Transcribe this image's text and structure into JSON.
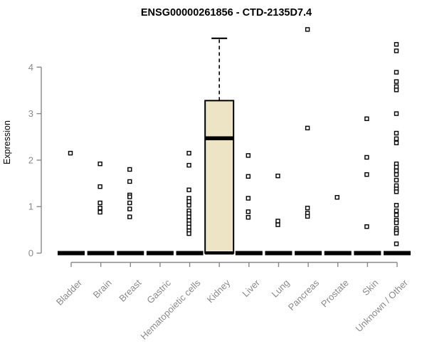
{
  "colors": {
    "axis": "#8A8A8A",
    "tick_text": "#8A8A8A",
    "title": "#000000",
    "box_fill": "#EDE4C5",
    "box_stroke": "#000000",
    "median": "#000000",
    "point_stroke": "#000000",
    "point_fill": "#FFFFFF",
    "background": "#FFFFFF"
  },
  "chart_data": {
    "type": "boxplot",
    "title": "ENSG00000261856 - CTD-2135D7.4",
    "xlabel": "",
    "ylabel": "Expression",
    "ylim": [
      0,
      4.85
    ],
    "yticks": [
      0,
      1,
      2,
      3,
      4
    ],
    "grid": false,
    "legend": "none",
    "categories": [
      "Bladder",
      "Brain",
      "Breast",
      "Gastric",
      "Hematopoietic cells",
      "Kidney",
      "Liver",
      "Lung",
      "Pancreas",
      "Prostate",
      "Skin",
      "Unknown / Other"
    ],
    "boxes": [
      {
        "category": "Bladder",
        "q1": 0,
        "median": 0,
        "q3": 0,
        "whisker_low": 0,
        "whisker_high": 0,
        "outliers": [
          2.15
        ]
      },
      {
        "category": "Brain",
        "q1": 0,
        "median": 0,
        "q3": 0,
        "whisker_low": 0,
        "whisker_high": 0,
        "outliers": [
          1.92,
          1.43,
          1.08,
          0.97,
          0.88
        ]
      },
      {
        "category": "Breast",
        "q1": 0,
        "median": 0,
        "q3": 0,
        "whisker_low": 0,
        "whisker_high": 0,
        "outliers": [
          1.8,
          1.54,
          1.25,
          1.21,
          1.08,
          0.95,
          0.78
        ]
      },
      {
        "category": "Gastric",
        "q1": 0,
        "median": 0,
        "q3": 0,
        "whisker_low": 0,
        "whisker_high": 0,
        "outliers": []
      },
      {
        "category": "Hematopoietic cells",
        "q1": 0,
        "median": 0,
        "q3": 0,
        "whisker_low": 0,
        "whisker_high": 0,
        "outliers": [
          2.15,
          1.89,
          1.36,
          1.18,
          1.11,
          1.03,
          0.91,
          0.85,
          0.78,
          0.7,
          0.63,
          0.56,
          0.48,
          0.42
        ]
      },
      {
        "category": "Kidney",
        "q1": 0,
        "median": 2.47,
        "q3": 3.28,
        "whisker_low": 0,
        "whisker_high": 4.62,
        "outliers": []
      },
      {
        "category": "Liver",
        "q1": 0,
        "median": 0,
        "q3": 0,
        "whisker_low": 0,
        "whisker_high": 0,
        "outliers": [
          2.1,
          1.65,
          1.18,
          0.89,
          0.77
        ]
      },
      {
        "category": "Lung",
        "q1": 0,
        "median": 0,
        "q3": 0,
        "whisker_low": 0,
        "whisker_high": 0,
        "outliers": [
          1.66,
          0.69,
          0.61
        ]
      },
      {
        "category": "Pancreas",
        "q1": 0,
        "median": 0,
        "q3": 0,
        "whisker_low": 0,
        "whisker_high": 0,
        "outliers": [
          4.81,
          2.69,
          0.97,
          0.86,
          0.79
        ]
      },
      {
        "category": "Prostate",
        "q1": 0,
        "median": 0,
        "q3": 0,
        "whisker_low": 0,
        "whisker_high": 0,
        "outliers": [
          1.2
        ]
      },
      {
        "category": "Skin",
        "q1": 0,
        "median": 0,
        "q3": 0,
        "whisker_low": 0,
        "whisker_high": 0,
        "outliers": [
          2.89,
          2.06,
          1.69,
          0.57
        ]
      },
      {
        "category": "Unknown / Other",
        "q1": 0,
        "median": 0,
        "q3": 0,
        "whisker_low": 0,
        "whisker_high": 0,
        "outliers": [
          4.49,
          4.35,
          3.89,
          3.69,
          3.58,
          3.51,
          3.0,
          2.58,
          2.46,
          2.37,
          1.92,
          1.85,
          1.77,
          1.69,
          1.57,
          1.45,
          1.38,
          1.32,
          1.03,
          0.91,
          0.82,
          0.71,
          0.65,
          0.53,
          0.48,
          0.43,
          0.2
        ]
      }
    ]
  }
}
